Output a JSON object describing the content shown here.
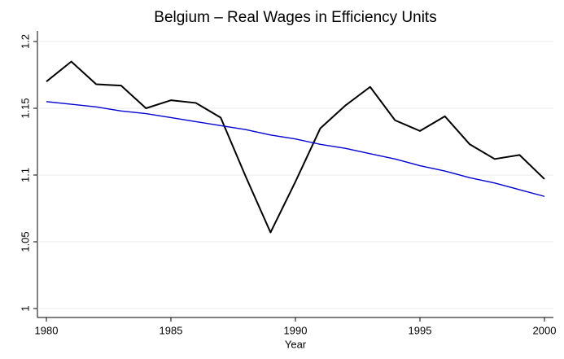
{
  "chart_data": {
    "type": "line",
    "title": "Belgium – Real Wages in Efficiency Units",
    "x_label": "Year",
    "x": [
      1980,
      1981,
      1982,
      1983,
      1984,
      1985,
      1986,
      1987,
      1988,
      1989,
      1990,
      1991,
      1992,
      1993,
      1994,
      1995,
      1996,
      1997,
      1998,
      1999,
      2000
    ],
    "series": [
      {
        "color": "#000000",
        "values": [
          1.17,
          1.185,
          1.168,
          1.167,
          1.15,
          1.156,
          1.154,
          1.143,
          1.099,
          1.057,
          1.095,
          1.135,
          1.152,
          1.166,
          1.141,
          1.133,
          1.144,
          1.123,
          1.112,
          1.115,
          1.097
        ]
      },
      {
        "color": "#0000d0",
        "values": [
          1.155,
          1.153,
          1.151,
          1.148,
          1.146,
          1.143,
          1.14,
          1.137,
          1.134,
          1.13,
          1.127,
          1.123,
          1.12,
          1.116,
          1.112,
          1.107,
          1.103,
          1.098,
          1.094,
          1.089,
          1.084
        ]
      }
    ],
    "xlim": [
      1980,
      2000
    ],
    "xticks": [
      1980,
      1985,
      1990,
      1995,
      2000
    ],
    "ylim": [
      1,
      1.2
    ],
    "yticks": [
      1,
      1.05,
      1.1,
      1.15,
      1.2
    ],
    "grid": true
  }
}
